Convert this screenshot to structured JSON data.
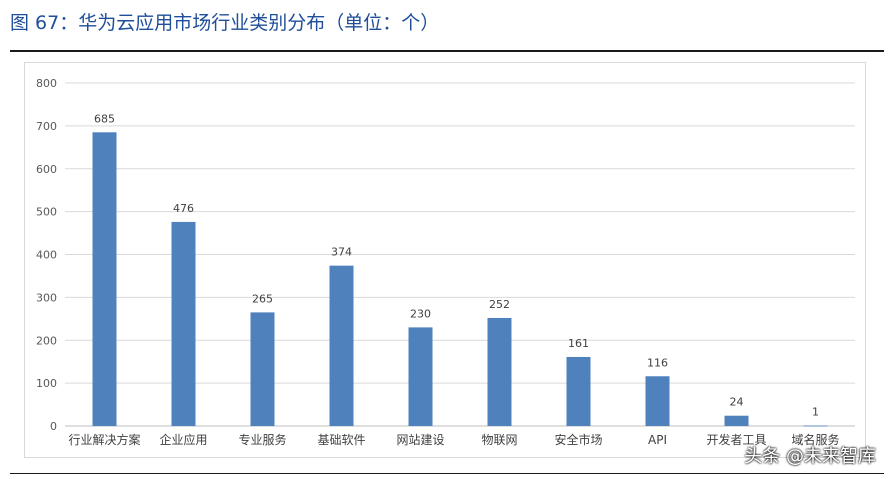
{
  "figure": {
    "title": "图 67：华为云应用市场行业类别分布（单位：个）",
    "watermark": "头条 @未来智库"
  },
  "colors": {
    "bar": "#4f81bd",
    "grid": "#d9d9d9",
    "title": "#1f4e9a"
  },
  "chart_data": {
    "type": "bar",
    "categories": [
      "行业解决方案",
      "企业应用",
      "专业服务",
      "基础软件",
      "网站建设",
      "物联网",
      "安全市场",
      "API",
      "开发者工具",
      "域名服务"
    ],
    "values": [
      685,
      476,
      265,
      374,
      230,
      252,
      161,
      116,
      24,
      1
    ],
    "yticks": [
      "0",
      "100",
      "200",
      "300",
      "400",
      "500",
      "600",
      "700",
      "800"
    ],
    "title": "",
    "xlabel": "",
    "ylabel": "",
    "ylim": [
      0,
      800
    ],
    "grid": true,
    "legend": "none"
  }
}
